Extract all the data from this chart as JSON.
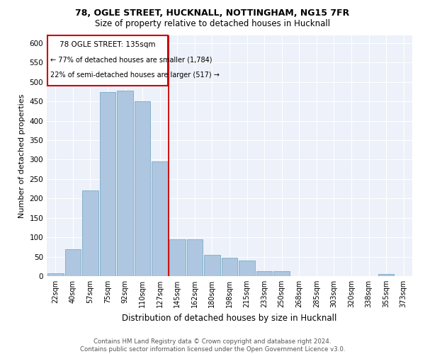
{
  "title1": "78, OGLE STREET, HUCKNALL, NOTTINGHAM, NG15 7FR",
  "title2": "Size of property relative to detached houses in Hucknall",
  "xlabel": "Distribution of detached houses by size in Hucknall",
  "ylabel": "Number of detached properties",
  "categories": [
    "22sqm",
    "40sqm",
    "57sqm",
    "75sqm",
    "92sqm",
    "110sqm",
    "127sqm",
    "145sqm",
    "162sqm",
    "180sqm",
    "198sqm",
    "215sqm",
    "233sqm",
    "250sqm",
    "268sqm",
    "285sqm",
    "303sqm",
    "320sqm",
    "338sqm",
    "355sqm",
    "373sqm"
  ],
  "values": [
    7,
    70,
    220,
    475,
    478,
    450,
    295,
    95,
    95,
    55,
    48,
    40,
    12,
    12,
    0,
    0,
    0,
    0,
    0,
    5,
    0
  ],
  "bar_color": "#aec6df",
  "bar_edge_color": "#7aaac8",
  "vline_x_index": 6.5,
  "vline_color": "#cc0000",
  "annotation_line1": "78 OGLE STREET: 135sqm",
  "annotation_line2": "← 77% of detached houses are smaller (1,784)",
  "annotation_line3": "22% of semi-detached houses are larger (517) →",
  "annotation_box_color": "#cc0000",
  "ylim": [
    0,
    620
  ],
  "yticks": [
    0,
    50,
    100,
    150,
    200,
    250,
    300,
    350,
    400,
    450,
    500,
    550,
    600
  ],
  "footer": "Contains HM Land Registry data © Crown copyright and database right 2024.\nContains public sector information licensed under the Open Government Licence v3.0.",
  "bg_color": "#edf1fa",
  "fig_bg_color": "#ffffff",
  "title1_fontsize": 9,
  "title2_fontsize": 8.5,
  "ylabel_text": "Number of detached properties"
}
